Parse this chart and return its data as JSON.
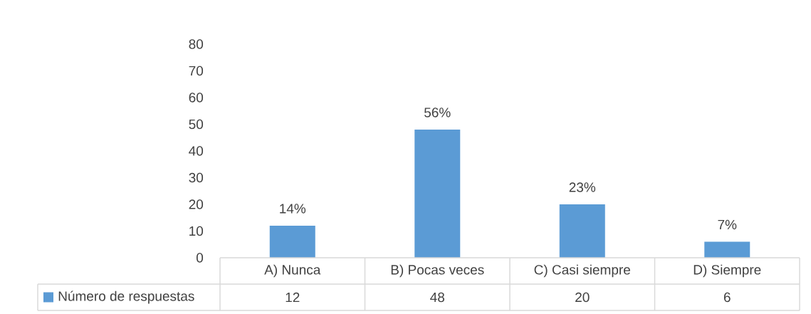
{
  "chart_data": {
    "type": "bar",
    "categories": [
      "A) Nunca",
      "B) Pocas veces",
      "C) Casi siempre",
      "D) Siempre"
    ],
    "series": [
      {
        "name": "Número de respuestas",
        "color": "#5b9bd5",
        "values": [
          12,
          48,
          20,
          6
        ],
        "value_labels": [
          "12",
          "48",
          "20",
          "6"
        ]
      }
    ],
    "ylim": [
      0,
      80
    ],
    "yticks": [
      0,
      10,
      20,
      30,
      40,
      50,
      60,
      70,
      80
    ],
    "annotations": [
      {
        "text": "14%",
        "x": "A) Nunca",
        "y": 12
      },
      {
        "text": "56%",
        "x": "B) Pocas veces",
        "y": 48
      },
      {
        "text": "23%",
        "x": "C) Casi siempre",
        "y": 20
      },
      {
        "text": "7%",
        "x": "D) Siempre",
        "y": 6
      }
    ],
    "legend": "bottom"
  }
}
